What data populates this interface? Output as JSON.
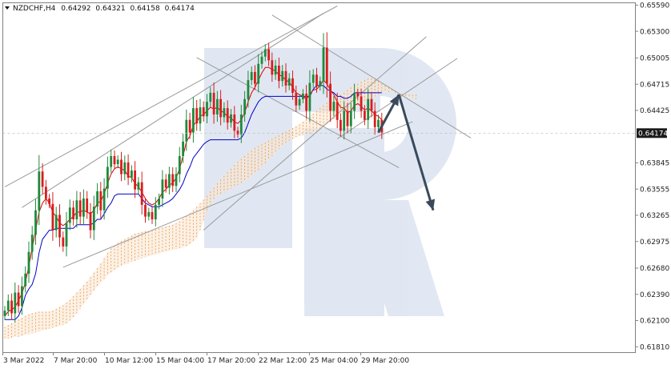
{
  "header": {
    "symbol": "NZDCHF,H4",
    "open": "0.64292",
    "high": "0.64321",
    "low": "0.64158",
    "close": "0.64174"
  },
  "chart_data": {
    "type": "candlestick",
    "title": "",
    "x_ticks": [
      "3 Mar 2022",
      "7 Mar 20:00",
      "10 Mar 12:00",
      "15 Mar 04:00",
      "17 Mar 20:00",
      "22 Mar 12:00",
      "25 Mar 04:00",
      "29 Mar 20:00"
    ],
    "y_ticks": [
      "0.65590",
      "0.65300",
      "0.65005",
      "0.64715",
      "0.64425",
      "0.63845",
      "0.63555",
      "0.63265",
      "0.62975",
      "0.62680",
      "0.62390",
      "0.62100",
      "0.61810"
    ],
    "ylim": [
      0.6175,
      0.6562
    ],
    "current_price": 0.64174,
    "current_price_label": "0.64174",
    "candles_close": [
      0.6221,
      0.6232,
      0.6218,
      0.6241,
      0.6226,
      0.6248,
      0.6262,
      0.6286,
      0.6305,
      0.6332,
      0.6375,
      0.6358,
      0.6345,
      0.6339,
      0.631,
      0.6327,
      0.6302,
      0.6292,
      0.6318,
      0.6335,
      0.6322,
      0.6343,
      0.6325,
      0.6345,
      0.633,
      0.631,
      0.6336,
      0.6353,
      0.6332,
      0.6356,
      0.638,
      0.6392,
      0.6383,
      0.6388,
      0.6372,
      0.6385,
      0.6368,
      0.6376,
      0.6355,
      0.6363,
      0.6338,
      0.6325,
      0.633,
      0.6322,
      0.6338,
      0.6345,
      0.6366,
      0.6357,
      0.6372,
      0.6359,
      0.6372,
      0.6392,
      0.6408,
      0.6432,
      0.6418,
      0.6445,
      0.6428,
      0.6446,
      0.6436,
      0.6452,
      0.6462,
      0.6438,
      0.6455,
      0.6435,
      0.6445,
      0.6429,
      0.6438,
      0.642,
      0.6416,
      0.6438,
      0.6455,
      0.6476,
      0.6485,
      0.6472,
      0.6494,
      0.6502,
      0.651,
      0.6498,
      0.6482,
      0.6492,
      0.6475,
      0.6486,
      0.647,
      0.6478,
      0.6462,
      0.6448,
      0.6455,
      0.6461,
      0.6442,
      0.6473,
      0.6482,
      0.6469,
      0.6475,
      0.6512,
      0.6472,
      0.6442,
      0.6452,
      0.6432,
      0.642,
      0.6442,
      0.6425,
      0.6442,
      0.6462,
      0.6458,
      0.6442,
      0.6432,
      0.6455,
      0.6442,
      0.6424,
      0.6432,
      0.6418
    ],
    "tenkan_sen": [
      0.6215,
      0.622,
      0.6222,
      0.6225,
      0.6232,
      0.624,
      0.6252,
      0.627,
      0.629,
      0.631,
      0.633,
      0.634,
      0.6345,
      0.634,
      0.633,
      0.6325,
      0.6318,
      0.6315,
      0.6318,
      0.6322,
      0.6325,
      0.633,
      0.633,
      0.6332,
      0.633,
      0.6328,
      0.6332,
      0.634,
      0.6342,
      0.635,
      0.6362,
      0.6372,
      0.6378,
      0.638,
      0.6378,
      0.6376,
      0.637,
      0.6368,
      0.6362,
      0.6358,
      0.6352,
      0.6345,
      0.634,
      0.6338,
      0.634,
      0.6345,
      0.6352,
      0.6355,
      0.636,
      0.6362,
      0.6368,
      0.6378,
      0.6392,
      0.6408,
      0.6414,
      0.6426,
      0.643,
      0.6436,
      0.6438,
      0.6442,
      0.6446,
      0.6444,
      0.6446,
      0.6442,
      0.644,
      0.6436,
      0.6434,
      0.643,
      0.6428,
      0.6432,
      0.644,
      0.6452,
      0.6462,
      0.6468,
      0.6476,
      0.6484,
      0.649,
      0.649,
      0.6488,
      0.6486,
      0.6482,
      0.648,
      0.6476,
      0.6474,
      0.6468,
      0.6462,
      0.646,
      0.6458,
      0.6455,
      0.646,
      0.6465,
      0.6466,
      0.647,
      0.6476,
      0.6472,
      0.6465,
      0.646,
      0.6452,
      0.6446,
      0.6445,
      0.644,
      0.6442,
      0.6448,
      0.645,
      0.6447,
      0.6443,
      0.6445,
      0.6442,
      0.6438,
      0.6436,
      0.6432
    ],
    "kijun_sen": [
      0.6211,
      0.6211,
      0.6211,
      0.6211,
      0.6215,
      0.6224,
      0.6238,
      0.6245,
      0.625,
      0.6262,
      0.6285,
      0.63,
      0.6305,
      0.631,
      0.631,
      0.6312,
      0.6312,
      0.6312,
      0.6312,
      0.6312,
      0.6312,
      0.6316,
      0.6316,
      0.6316,
      0.6316,
      0.6316,
      0.6318,
      0.6322,
      0.6322,
      0.6328,
      0.6335,
      0.634,
      0.6348,
      0.635,
      0.635,
      0.635,
      0.635,
      0.635,
      0.635,
      0.635,
      0.6345,
      0.634,
      0.6338,
      0.6336,
      0.6336,
      0.6336,
      0.6338,
      0.634,
      0.6342,
      0.6345,
      0.635,
      0.6355,
      0.6362,
      0.6372,
      0.638,
      0.639,
      0.6395,
      0.64,
      0.6405,
      0.6408,
      0.641,
      0.641,
      0.641,
      0.641,
      0.641,
      0.641,
      0.641,
      0.641,
      0.641,
      0.6412,
      0.6418,
      0.6428,
      0.6438,
      0.6445,
      0.6452,
      0.6456,
      0.6458,
      0.6458,
      0.6458,
      0.6458,
      0.6458,
      0.6458,
      0.6458,
      0.6458,
      0.6458,
      0.6458,
      0.6458,
      0.6458,
      0.6458,
      0.6458,
      0.6466,
      0.647,
      0.647,
      0.647,
      0.6466,
      0.6464,
      0.6462,
      0.6458,
      0.6458,
      0.6456,
      0.6456,
      0.6458,
      0.6462,
      0.6462,
      0.6462,
      0.6462,
      0.6462,
      0.6462,
      0.6462,
      0.6462,
      0.6462
    ],
    "cloud_top": [
      0.6203,
      0.6205,
      0.6207,
      0.6209,
      0.6211,
      0.6213,
      0.6215,
      0.6217,
      0.6218,
      0.6219,
      0.622,
      0.622,
      0.622,
      0.622,
      0.6221,
      0.6223,
      0.6225,
      0.6227,
      0.623,
      0.6233,
      0.6237,
      0.6241,
      0.6245,
      0.6249,
      0.6253,
      0.6258,
      0.6263,
      0.6268,
      0.6273,
      0.6279,
      0.6285,
      0.629,
      0.6293,
      0.6296,
      0.6298,
      0.63,
      0.6302,
      0.6304,
      0.6306,
      0.6307,
      0.6308,
      0.6309,
      0.6309,
      0.631,
      0.6311,
      0.6312,
      0.6313,
      0.6314,
      0.6315,
      0.6316,
      0.6318,
      0.632,
      0.6323,
      0.6326,
      0.6329,
      0.6332,
      0.6336,
      0.634,
      0.6344,
      0.6348,
      0.6353,
      0.6357,
      0.6362,
      0.6366,
      0.637,
      0.6374,
      0.6378,
      0.6382,
      0.6386,
      0.6389,
      0.6392,
      0.6395,
      0.6398,
      0.6401,
      0.6403,
      0.6405,
      0.6407,
      0.6409,
      0.6411,
      0.6413,
      0.6415,
      0.6417,
      0.6419,
      0.6421,
      0.6423,
      0.6425,
      0.6427,
      0.643,
      0.6433,
      0.6436,
      0.6439,
      0.6442,
      0.6445,
      0.6448,
      0.6451,
      0.6454,
      0.6456,
      0.6458,
      0.646,
      0.6462,
      0.6465,
      0.6468,
      0.647,
      0.6472,
      0.6474,
      0.6476,
      0.6478,
      0.6478,
      0.6477,
      0.6475,
      0.6472,
      0.647,
      0.6468,
      0.6466,
      0.6464,
      0.6462,
      0.6461,
      0.646,
      0.646,
      0.646,
      0.646
    ],
    "cloud_bottom": [
      0.619,
      0.619,
      0.6191,
      0.6192,
      0.6192,
      0.6193,
      0.6194,
      0.6195,
      0.6196,
      0.6197,
      0.6198,
      0.6199,
      0.62,
      0.6201,
      0.6202,
      0.6203,
      0.6204,
      0.6205,
      0.6207,
      0.621,
      0.6214,
      0.6218,
      0.6223,
      0.6228,
      0.6233,
      0.6238,
      0.6243,
      0.6248,
      0.6252,
      0.6256,
      0.626,
      0.6263,
      0.6266,
      0.6268,
      0.627,
      0.6272,
      0.6273,
      0.6275,
      0.6276,
      0.6278,
      0.6279,
      0.628,
      0.6281,
      0.6282,
      0.6283,
      0.6284,
      0.6285,
      0.6286,
      0.6287,
      0.6288,
      0.6289,
      0.629,
      0.6291,
      0.6292,
      0.6294,
      0.6297,
      0.6302,
      0.631,
      0.632,
      0.633,
      0.6338,
      0.6344,
      0.6348,
      0.635,
      0.6352,
      0.6354,
      0.6356,
      0.6358,
      0.636,
      0.6362,
      0.6364,
      0.6367,
      0.637,
      0.6373,
      0.6376,
      0.638,
      0.6384,
      0.6388,
      0.6392,
      0.6396,
      0.64,
      0.6403,
      0.6406,
      0.6409,
      0.6411,
      0.6413,
      0.6414,
      0.6415,
      0.6416,
      0.6417,
      0.6418,
      0.642,
      0.6422,
      0.6424,
      0.6427,
      0.643,
      0.6433,
      0.6436,
      0.6438,
      0.644,
      0.6442,
      0.6444,
      0.6446,
      0.6448,
      0.645,
      0.6452,
      0.6454,
      0.6456,
      0.6458,
      0.646,
      0.6462,
      0.6463,
      0.6463,
      0.6463,
      0.6462,
      0.6461,
      0.646,
      0.6458,
      0.6457,
      0.6456,
      0.6455
    ],
    "trendlines": [
      {
        "name": "upper-channel-top",
        "from": [
          0,
          0.6358
        ],
        "to": [
          97,
          0.6558
        ]
      },
      {
        "name": "upper-channel-bottom",
        "from": [
          5,
          0.6335
        ],
        "to": [
          93,
          0.655
        ]
      },
      {
        "name": "lower-channel-top",
        "from": [
          58,
          0.631
        ],
        "to": [
          123,
          0.6524
        ]
      },
      {
        "name": "lower-channel-bottom",
        "from": [
          17,
          0.6269
        ],
        "to": [
          119,
          0.643
        ]
      },
      {
        "name": "descending-upper",
        "from": [
          78,
          0.6548
        ],
        "to": [
          136,
          0.6412
        ]
      },
      {
        "name": "descending-lower",
        "from": [
          56,
          0.6501
        ],
        "to": [
          115,
          0.6379
        ]
      },
      {
        "name": "rising-short",
        "from": [
          97,
          0.6411
        ],
        "to": [
          132,
          0.65
        ]
      }
    ],
    "forecast_arrows": [
      {
        "from": [
          109,
          0.6418
        ],
        "to": [
          115,
          0.646
        ]
      },
      {
        "from": [
          115,
          0.646
        ],
        "to": [
          125,
          0.6332
        ]
      }
    ]
  }
}
